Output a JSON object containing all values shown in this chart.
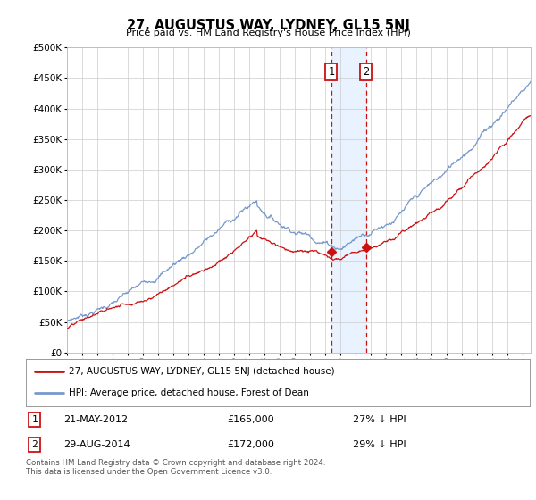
{
  "title": "27, AUGUSTUS WAY, LYDNEY, GL15 5NJ",
  "subtitle": "Price paid vs. HM Land Registry's House Price Index (HPI)",
  "hpi_color": "#7799cc",
  "price_color": "#cc1111",
  "background_color": "#ffffff",
  "grid_color": "#cccccc",
  "ylim": [
    0,
    500000
  ],
  "yticks": [
    0,
    50000,
    100000,
    150000,
    200000,
    250000,
    300000,
    350000,
    400000,
    450000,
    500000
  ],
  "legend_label_price": "27, AUGUSTUS WAY, LYDNEY, GL15 5NJ (detached house)",
  "legend_label_hpi": "HPI: Average price, detached house, Forest of Dean",
  "annotation1_date": "21-MAY-2012",
  "annotation1_price": "£165,000",
  "annotation1_pct": "27% ↓ HPI",
  "annotation2_date": "29-AUG-2014",
  "annotation2_price": "£172,000",
  "annotation2_pct": "29% ↓ HPI",
  "footnote": "Contains HM Land Registry data © Crown copyright and database right 2024.\nThis data is licensed under the Open Government Licence v3.0.",
  "sale1_x": 2012.38,
  "sale1_y": 165000,
  "sale2_x": 2014.66,
  "sale2_y": 172000,
  "shade_x1": 2012.38,
  "shade_x2": 2014.66,
  "xmin": 1995,
  "xmax": 2025.5
}
